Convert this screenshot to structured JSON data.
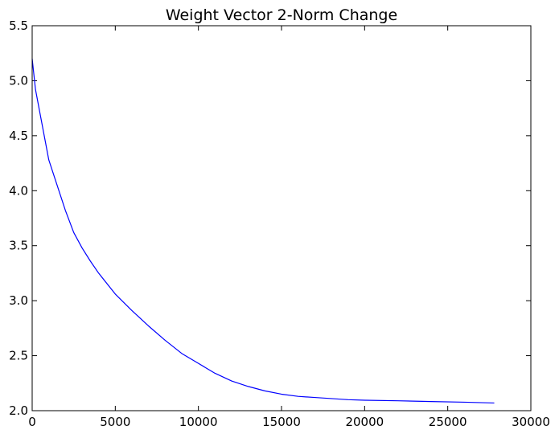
{
  "chart_data": {
    "type": "line",
    "title": "Weight Vector 2-Norm Change",
    "xlabel": "",
    "ylabel": "",
    "xlim": [
      0,
      30000
    ],
    "ylim": [
      2.0,
      5.5
    ],
    "xticks": [
      "0",
      "5000",
      "10000",
      "15000",
      "20000",
      "25000",
      "30000"
    ],
    "yticks": [
      "2.0",
      "2.5",
      "3.0",
      "3.5",
      "4.0",
      "4.5",
      "5.0",
      "5.5"
    ],
    "grid": false,
    "legend": "none",
    "series": [
      {
        "color": "#0000ff",
        "x": [
          0,
          200,
          500,
          1000,
          1500,
          2000,
          2500,
          3000,
          3500,
          4000,
          5000,
          6000,
          7000,
          8000,
          9000,
          10000,
          11000,
          12000,
          13000,
          14000,
          15000,
          16000,
          17000,
          18000,
          19000,
          20000,
          22000,
          24000,
          26000,
          27800
        ],
        "y": [
          5.2,
          4.92,
          4.68,
          4.28,
          4.05,
          3.82,
          3.62,
          3.48,
          3.36,
          3.25,
          3.06,
          2.91,
          2.77,
          2.64,
          2.52,
          2.43,
          2.34,
          2.27,
          2.22,
          2.18,
          2.15,
          2.13,
          2.12,
          2.11,
          2.1,
          2.095,
          2.09,
          2.083,
          2.077,
          2.07
        ]
      }
    ]
  }
}
